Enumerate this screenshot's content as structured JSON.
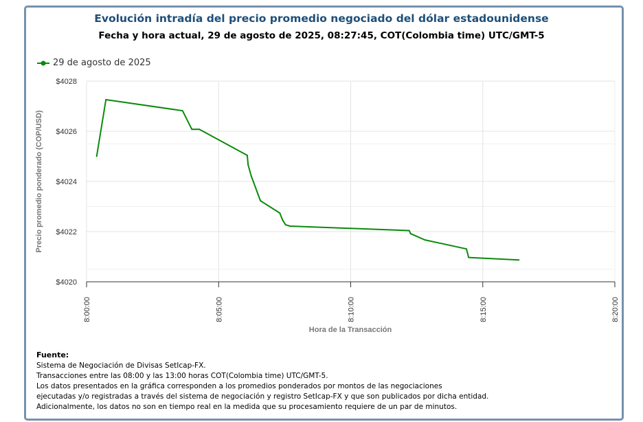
{
  "title": "Evolución intradía del precio promedio negociado del dólar estadounidense",
  "subtitle": "Fecha y hora actual, 29 de agosto de 2025, 08:27:45, COT(Colombia time) UTC/GMT-5",
  "footer": {
    "heading": "Fuente:",
    "lines": [
      "Sistema de Negociación de Divisas SetIcap-FX.",
      "Transacciones entre las 08:00 y las 13:00 horas COT(Colombia time) UTC/GMT-5.",
      "Los datos presentados en la gráfica corresponden a los promedios ponderados por montos de las negociaciones",
      "ejecutadas y/o registradas a través del sistema de negociación y registro SetIcap-FX y que son publicados por dicha entidad.",
      "Adicionalmente, los datos no son en tiempo real en la medida que su procesamiento requiere de un par de minutos."
    ]
  },
  "chart_data": {
    "type": "line",
    "xlabel": "Hora de la Transacción",
    "ylabel": "Precio promedio ponderado (COP/USD)",
    "xlim": [
      "8:00:00",
      "8:20:00"
    ],
    "ylim": [
      4020,
      4028
    ],
    "xticks": [
      "8:00:00",
      "8:05:00",
      "8:10:00",
      "8:15:00",
      "8:20:00"
    ],
    "yticks": [
      "$4020",
      "$4022",
      "$4024",
      "$4026",
      "$4028"
    ],
    "grid": true,
    "legend_position": "top-left",
    "series": [
      {
        "name": "29 de agosto de 2025",
        "color": "#0a8a0a",
        "x": [
          "8:00:23",
          "8:00:44",
          "8:03:38",
          "8:03:59",
          "8:04:16",
          "8:06:05",
          "8:06:07",
          "8:06:14",
          "8:06:35",
          "8:07:19",
          "8:07:25",
          "8:07:32",
          "8:07:42",
          "8:10:00",
          "8:12:13",
          "8:12:16",
          "8:12:48",
          "8:14:23",
          "8:14:28",
          "8:16:22"
        ],
        "y": [
          4025.0,
          4027.26,
          4026.82,
          4026.08,
          4026.08,
          4025.04,
          4024.66,
          4024.22,
          4023.23,
          4022.74,
          4022.47,
          4022.27,
          4022.22,
          4022.13,
          4022.04,
          4021.92,
          4021.67,
          4021.31,
          4020.97,
          4020.87
        ]
      }
    ]
  }
}
